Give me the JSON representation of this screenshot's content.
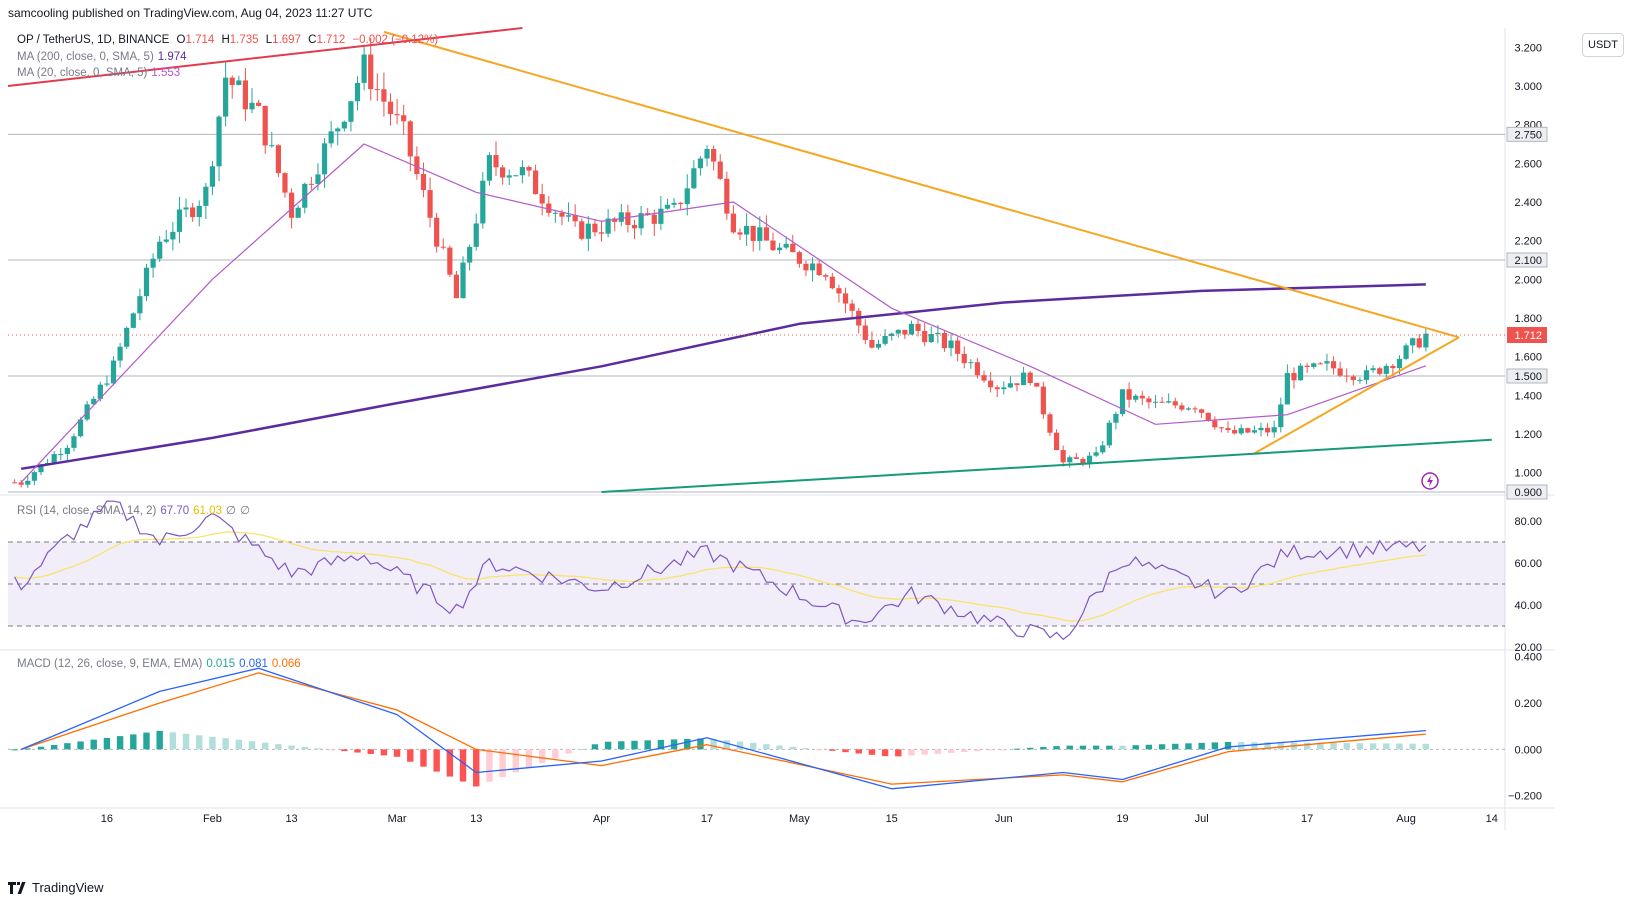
{
  "header": {
    "publisher": "samcooling published on TradingView.com, Aug 04, 2023 11:27 UTC"
  },
  "currency_button": "USDT",
  "footer": {
    "brand": "TradingView"
  },
  "legend": {
    "symbol": "OP / TetherUS, 1D, BINANCE",
    "o_label": "O",
    "o": "1.714",
    "h_label": "H",
    "h": "1.735",
    "l_label": "L",
    "l": "1.697",
    "c_label": "C",
    "c": "1.712",
    "change": "−0.002 (−0.12%)",
    "ma200_label": "MA (200, close, 0, SMA, 5)",
    "ma200": "1.974",
    "ma20_label": "MA (20, close, 0, SMA, 5)",
    "ma20": "1.553",
    "rsi_label": "RSI (14, close, SMA, 14, 2)",
    "rsi": "67.70",
    "rsi_ma": "61.03",
    "rsi_extra1": "∅",
    "rsi_extra2": "∅",
    "macd_label": "MACD (12, 26, close, 9, EMA, EMA)",
    "macd_hist": "0.015",
    "macd": "0.081",
    "macd_signal": "0.066"
  },
  "colors": {
    "up": "#26a69a",
    "down": "#ef5350",
    "ma200": "#5b2c9f",
    "ma20": "#b25bc9",
    "triangle": "#f5a623",
    "support": "#159a7a",
    "resistance": "#e23b4e",
    "rsi": "#7e57c2",
    "rsi_ma": "#f9e46a",
    "macd": "#2962ff",
    "signal": "#ff6d00",
    "last_price_bg": "#ef5350"
  },
  "chart_data": {
    "type": "candlestick",
    "title": "OP / TetherUS, 1D, BINANCE",
    "x_tick_labels": [
      "16",
      "Feb",
      "13",
      "Mar",
      "13",
      "Apr",
      "17",
      "May",
      "15",
      "Jun",
      "19",
      "Jul",
      "17",
      "Aug",
      "14"
    ],
    "price_axis": {
      "ticks": [
        "3.200",
        "3.000",
        "2.800",
        "2.600",
        "2.400",
        "2.200",
        "2.000",
        "1.800",
        "1.600",
        "1.400",
        "1.200",
        "1.000"
      ],
      "ylim": [
        0.9,
        3.3
      ]
    },
    "horizontal_levels": [
      "2.750",
      "2.100",
      "1.500",
      "0.900"
    ],
    "last_price": "1.712",
    "close_path": [
      {
        "date": "2023-01-03",
        "close": 0.95
      },
      {
        "date": "2023-01-10",
        "close": 1.15
      },
      {
        "date": "2023-01-17",
        "close": 1.55
      },
      {
        "date": "2023-01-24",
        "close": 2.2
      },
      {
        "date": "2023-01-31",
        "close": 2.45
      },
      {
        "date": "2023-02-03",
        "close": 3.05
      },
      {
        "date": "2023-02-08",
        "close": 2.85
      },
      {
        "date": "2023-02-13",
        "close": 2.35
      },
      {
        "date": "2023-02-20",
        "close": 2.8
      },
      {
        "date": "2023-02-24",
        "close": 3.1
      },
      {
        "date": "2023-03-02",
        "close": 2.75
      },
      {
        "date": "2023-03-10",
        "close": 1.9
      },
      {
        "date": "2023-03-15",
        "close": 2.6
      },
      {
        "date": "2023-03-20",
        "close": 2.55
      },
      {
        "date": "2023-03-28",
        "close": 2.25
      },
      {
        "date": "2023-04-05",
        "close": 2.3
      },
      {
        "date": "2023-04-12",
        "close": 2.35
      },
      {
        "date": "2023-04-17",
        "close": 2.7
      },
      {
        "date": "2023-04-21",
        "close": 2.3
      },
      {
        "date": "2023-04-28",
        "close": 2.15
      },
      {
        "date": "2023-05-05",
        "close": 2.05
      },
      {
        "date": "2023-05-12",
        "close": 1.65
      },
      {
        "date": "2023-05-18",
        "close": 1.75
      },
      {
        "date": "2023-05-24",
        "close": 1.65
      },
      {
        "date": "2023-05-31",
        "close": 1.45
      },
      {
        "date": "2023-06-05",
        "close": 1.5
      },
      {
        "date": "2023-06-10",
        "close": 1.05
      },
      {
        "date": "2023-06-15",
        "close": 1.08
      },
      {
        "date": "2023-06-19",
        "close": 1.4
      },
      {
        "date": "2023-06-24",
        "close": 1.35
      },
      {
        "date": "2023-06-30",
        "close": 1.35
      },
      {
        "date": "2023-07-05",
        "close": 1.2
      },
      {
        "date": "2023-07-12",
        "close": 1.22
      },
      {
        "date": "2023-07-14",
        "close": 1.5
      },
      {
        "date": "2023-07-20",
        "close": 1.55
      },
      {
        "date": "2023-07-26",
        "close": 1.5
      },
      {
        "date": "2023-07-31",
        "close": 1.6
      },
      {
        "date": "2023-08-04",
        "close": 1.712
      }
    ],
    "ma200_path": [
      {
        "date": "2023-01-03",
        "value": 1.02
      },
      {
        "date": "2023-02-01",
        "value": 1.18
      },
      {
        "date": "2023-03-01",
        "value": 1.36
      },
      {
        "date": "2023-04-01",
        "value": 1.55
      },
      {
        "date": "2023-05-01",
        "value": 1.77
      },
      {
        "date": "2023-06-01",
        "value": 1.88
      },
      {
        "date": "2023-07-01",
        "value": 1.94
      },
      {
        "date": "2023-08-04",
        "value": 1.974
      }
    ],
    "ma20_path": [
      {
        "date": "2023-01-03",
        "value": 0.95
      },
      {
        "date": "2023-02-01",
        "value": 2.0
      },
      {
        "date": "2023-02-24",
        "value": 2.7
      },
      {
        "date": "2023-03-13",
        "value": 2.45
      },
      {
        "date": "2023-04-01",
        "value": 2.3
      },
      {
        "date": "2023-04-21",
        "value": 2.4
      },
      {
        "date": "2023-05-15",
        "value": 1.85
      },
      {
        "date": "2023-06-05",
        "value": 1.55
      },
      {
        "date": "2023-06-24",
        "value": 1.25
      },
      {
        "date": "2023-07-14",
        "value": 1.3
      },
      {
        "date": "2023-08-04",
        "value": 1.553
      }
    ],
    "trendlines": [
      {
        "name": "descending-resistance",
        "points": [
          {
            "date": "2023-02-27",
            "value": 3.28
          },
          {
            "date": "2023-08-09",
            "value": 1.7
          }
        ]
      },
      {
        "name": "ascending-support",
        "points": [
          {
            "date": "2023-07-09",
            "value": 1.1
          },
          {
            "date": "2023-08-09",
            "value": 1.7
          }
        ]
      },
      {
        "name": "long-term-support",
        "points": [
          {
            "date": "2023-04-01",
            "value": 0.9
          },
          {
            "date": "2023-08-14",
            "value": 1.17
          }
        ]
      },
      {
        "name": "upper-channel",
        "points": [
          {
            "date": "2023-01-01",
            "value": 3.0
          },
          {
            "date": "2023-03-20",
            "value": 3.3
          }
        ]
      }
    ],
    "rsi": {
      "ticks": [
        "80.00",
        "60.00",
        "40.00",
        "20.00"
      ],
      "levels": [
        70,
        50,
        30
      ],
      "ylim": [
        20,
        90
      ],
      "path": [
        {
          "date": "2023-01-03",
          "value": 50
        },
        {
          "date": "2023-01-10",
          "value": 72
        },
        {
          "date": "2023-01-17",
          "value": 88
        },
        {
          "date": "2023-01-24",
          "value": 70
        },
        {
          "date": "2023-02-01",
          "value": 82
        },
        {
          "date": "2023-02-13",
          "value": 55
        },
        {
          "date": "2023-02-24",
          "value": 64
        },
        {
          "date": "2023-03-10",
          "value": 38
        },
        {
          "date": "2023-03-15",
          "value": 60
        },
        {
          "date": "2023-04-01",
          "value": 48
        },
        {
          "date": "2023-04-17",
          "value": 65
        },
        {
          "date": "2023-05-10",
          "value": 32
        },
        {
          "date": "2023-05-18",
          "value": 45
        },
        {
          "date": "2023-06-01",
          "value": 30
        },
        {
          "date": "2023-06-10",
          "value": 24
        },
        {
          "date": "2023-06-19",
          "value": 62
        },
        {
          "date": "2023-07-05",
          "value": 45
        },
        {
          "date": "2023-07-14",
          "value": 65
        },
        {
          "date": "2023-08-04",
          "value": 67.7
        }
      ]
    },
    "macd": {
      "ticks": [
        "0.400",
        "0.200",
        "0.000",
        "−0.200"
      ],
      "ylim": [
        -0.24,
        0.42
      ],
      "macd_path": [
        {
          "date": "2023-01-03",
          "value": 0
        },
        {
          "date": "2023-01-24",
          "value": 0.25
        },
        {
          "date": "2023-02-08",
          "value": 0.35
        },
        {
          "date": "2023-03-01",
          "value": 0.15
        },
        {
          "date": "2023-03-13",
          "value": -0.1
        },
        {
          "date": "2023-04-01",
          "value": -0.05
        },
        {
          "date": "2023-04-17",
          "value": 0.05
        },
        {
          "date": "2023-05-15",
          "value": -0.17
        },
        {
          "date": "2023-06-10",
          "value": -0.1
        },
        {
          "date": "2023-06-19",
          "value": -0.13
        },
        {
          "date": "2023-07-05",
          "value": 0.01
        },
        {
          "date": "2023-08-04",
          "value": 0.081
        }
      ],
      "signal_path": [
        {
          "date": "2023-01-03",
          "value": 0
        },
        {
          "date": "2023-01-24",
          "value": 0.2
        },
        {
          "date": "2023-02-08",
          "value": 0.33
        },
        {
          "date": "2023-03-01",
          "value": 0.17
        },
        {
          "date": "2023-03-13",
          "value": 0.0
        },
        {
          "date": "2023-04-01",
          "value": -0.07
        },
        {
          "date": "2023-04-17",
          "value": 0.02
        },
        {
          "date": "2023-05-15",
          "value": -0.15
        },
        {
          "date": "2023-06-10",
          "value": -0.11
        },
        {
          "date": "2023-06-19",
          "value": -0.14
        },
        {
          "date": "2023-07-05",
          "value": -0.01
        },
        {
          "date": "2023-08-04",
          "value": 0.066
        }
      ],
      "histogram_last": 0.015
    }
  }
}
